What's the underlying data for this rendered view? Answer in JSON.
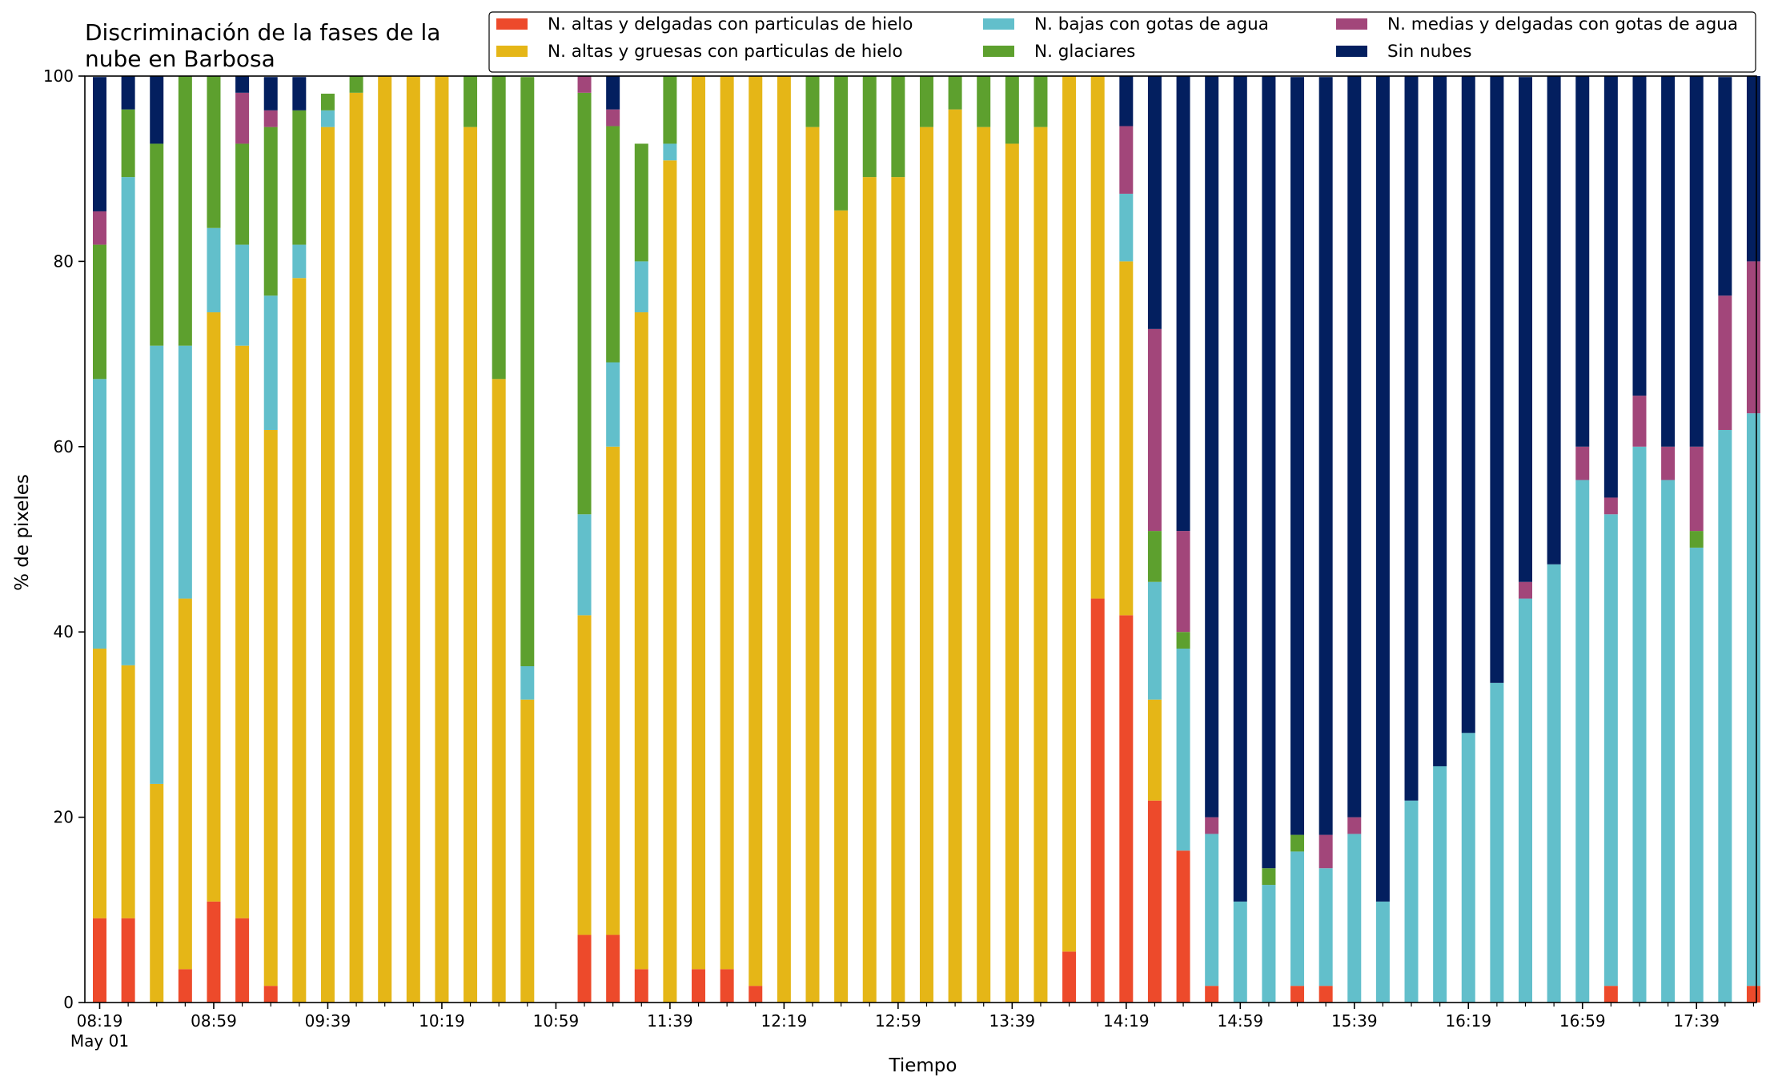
{
  "chart_data": {
    "type": "bar",
    "stacked": true,
    "title": "Discriminación de la fases de la nube en Barbosa",
    "title_lines": [
      "Discriminación de la fases de la",
      "nube en Barbosa"
    ],
    "xlabel": "Tiempo",
    "ylabel": "% de pixeles",
    "ylim": [
      0,
      100
    ],
    "yticks": [
      0,
      20,
      40,
      60,
      80,
      100
    ],
    "x_start": "08:19",
    "x_step_minutes": 10,
    "xtick_labels": [
      "08:19",
      "08:59",
      "09:39",
      "10:19",
      "10:59",
      "11:39",
      "12:19",
      "12:59",
      "13:39",
      "14:19",
      "14:59",
      "15:39",
      "16:19",
      "16:59",
      "17:39"
    ],
    "xtick_date": "May 01",
    "legend_position": "top-right",
    "grid": false,
    "series": [
      {
        "name": "N. altas y delgadas con particulas de hielo",
        "color": "#ed4a2b",
        "values": [
          9.1,
          9.1,
          0,
          3.6,
          10.9,
          9.1,
          1.8,
          0,
          0,
          0,
          0,
          0,
          0,
          0,
          0,
          0,
          0,
          7.3,
          7.3,
          3.6,
          0,
          3.6,
          3.6,
          1.8,
          0,
          0,
          0,
          0,
          0,
          0,
          0,
          0,
          0,
          0,
          5.5,
          43.6,
          41.8,
          21.8,
          16.4,
          1.8,
          0,
          0,
          1.8,
          1.8,
          0,
          0,
          0,
          0,
          0,
          0,
          0,
          0,
          0,
          1.8,
          0,
          0,
          0,
          0,
          1.8
        ]
      },
      {
        "name": "N. altas y gruesas con particulas de hielo",
        "color": "#e5b617",
        "values": [
          29.1,
          27.3,
          23.6,
          40,
          63.6,
          61.8,
          60,
          78.2,
          94.5,
          98.2,
          100,
          100,
          100,
          94.5,
          67.3,
          32.7,
          0,
          34.5,
          52.7,
          70.9,
          90.9,
          96.4,
          96.4,
          98.2,
          100,
          94.5,
          85.5,
          89.1,
          89.1,
          94.5,
          96.4,
          94.5,
          92.7,
          94.5,
          94.5,
          56.4,
          38.2,
          10.9,
          0,
          0,
          0,
          0,
          0,
          0,
          0,
          0,
          0,
          0,
          0,
          0,
          0,
          0,
          0,
          0,
          0,
          0,
          0,
          0,
          0
        ]
      },
      {
        "name": "N. bajas con gotas de agua",
        "color": "#62bfcb",
        "values": [
          29.1,
          52.7,
          47.3,
          27.3,
          9.1,
          10.9,
          14.5,
          3.6,
          1.8,
          0,
          0,
          0,
          0,
          0,
          0,
          3.6,
          0,
          10.9,
          9.1,
          5.5,
          1.8,
          0,
          0,
          0,
          0,
          0,
          0,
          0,
          0,
          0,
          0,
          0,
          0,
          0,
          0,
          0,
          7.3,
          12.7,
          21.8,
          16.4,
          10.9,
          12.7,
          14.5,
          12.7,
          18.2,
          10.9,
          21.8,
          25.5,
          29.1,
          34.5,
          43.6,
          47.3,
          56.4,
          50.9,
          60,
          56.4,
          49.1,
          61.8,
          61.8
        ]
      },
      {
        "name": "N. glaciares",
        "color": "#5da02e",
        "values": [
          14.5,
          7.3,
          21.8,
          29.1,
          16.4,
          10.9,
          18.2,
          14.5,
          1.8,
          1.8,
          0,
          0,
          0,
          5.5,
          32.7,
          63.6,
          0,
          45.5,
          25.5,
          12.7,
          7.3,
          0,
          0,
          0,
          0,
          5.5,
          14.5,
          10.9,
          10.9,
          5.5,
          3.6,
          5.5,
          7.3,
          5.5,
          0,
          0,
          0,
          5.5,
          1.8,
          0,
          0,
          1.8,
          1.8,
          0,
          0,
          0,
          0,
          0,
          0,
          0,
          0,
          0,
          0,
          0,
          0,
          0,
          1.8,
          0,
          0
        ]
      },
      {
        "name": "N. medias y delgadas con gotas de agua",
        "color": "#a2467a",
        "values": [
          3.6,
          0,
          0,
          0,
          0,
          5.5,
          1.8,
          0,
          0,
          0,
          0,
          0,
          0,
          0,
          0,
          0,
          0,
          1.8,
          1.8,
          0,
          0,
          0,
          0,
          0,
          0,
          0,
          0,
          0,
          0,
          0,
          0,
          0,
          0,
          0,
          0,
          0,
          7.3,
          21.8,
          10.9,
          1.8,
          0,
          0,
          0,
          3.6,
          1.8,
          0,
          0,
          0,
          0,
          0,
          1.8,
          0,
          3.6,
          1.8,
          5.5,
          3.6,
          9.1,
          14.5,
          16.4
        ]
      },
      {
        "name": "Sin nubes",
        "color": "#031f5f",
        "values": [
          14.5,
          3.6,
          7.3,
          0,
          0,
          1.8,
          3.6,
          3.6,
          0,
          0,
          0,
          0,
          0,
          0,
          0,
          0,
          0,
          0,
          3.6,
          0,
          0,
          0,
          0,
          0,
          0,
          0,
          0,
          0,
          0,
          0,
          0,
          0,
          0,
          0,
          0,
          0,
          5.5,
          27.3,
          49.1,
          80,
          89.1,
          85.5,
          81.8,
          81.8,
          80,
          89.1,
          78.2,
          74.5,
          70.9,
          65.5,
          54.5,
          52.7,
          40,
          45.5,
          34.5,
          40,
          40,
          23.6,
          20
        ]
      }
    ]
  }
}
